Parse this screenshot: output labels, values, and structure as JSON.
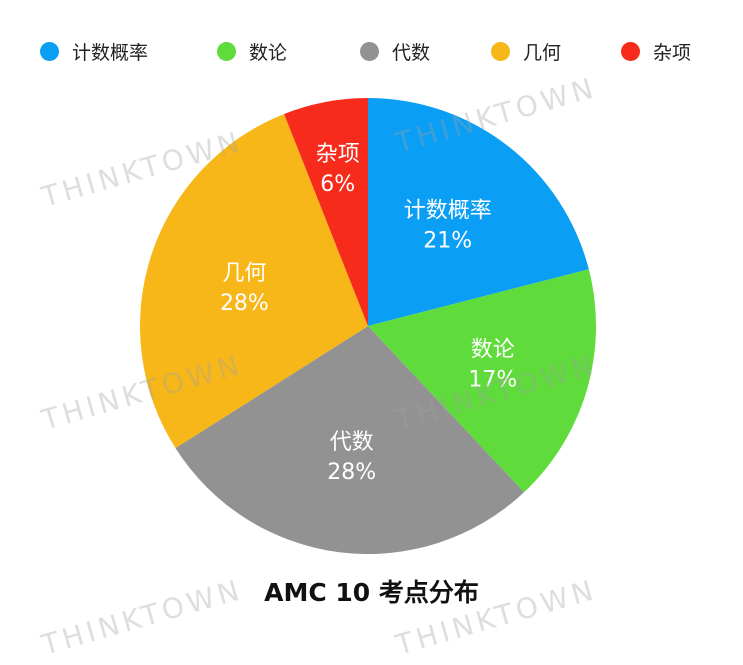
{
  "chart_data": {
    "type": "pie",
    "title": "AMC 10 考点分布",
    "categories": [
      "计数概率",
      "数论",
      "代数",
      "几何",
      "杂项"
    ],
    "values": [
      21,
      17,
      28,
      28,
      6
    ],
    "value_labels": [
      "21%",
      "17%",
      "28%",
      "28%",
      "6%"
    ],
    "colors": [
      "#0a9ff5",
      "#5fdb3c",
      "#929292",
      "#f7b718",
      "#f72b1c"
    ],
    "legend_position": "top",
    "start_angle": "12 o'clock",
    "direction": "clockwise"
  },
  "watermark": "THINKTOWN"
}
